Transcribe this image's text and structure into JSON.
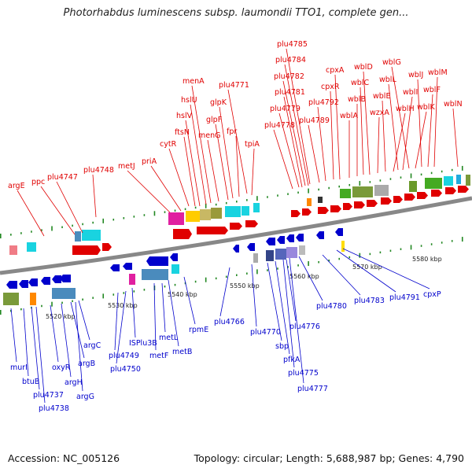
{
  "title": "Photorhabdus luminescens subsp. laumondii TTO1, complete gen...",
  "footer": {
    "accession": "Accession: NC_005126",
    "summary": "Topology: circular; Length: 5,688,987 bp; Genes: 4,790"
  },
  "colors": {
    "forward": "#e00000",
    "reverse": "#0000cc",
    "backbone": "#888888",
    "tick": "#228822"
  },
  "ticks": [
    "5520 kbp",
    "5530 kbp",
    "5540 kbp",
    "5550 kbp",
    "5560 kbp",
    "5570 kbp",
    "5580 kbp"
  ],
  "forward_labels": [
    "argE",
    "ppc",
    "plu4747",
    "plu4748",
    "metJ",
    "priA",
    "cytR",
    "ftsN",
    "hslV",
    "hslU",
    "menA",
    "menG",
    "glpF",
    "glpK",
    "fpr",
    "plu4771",
    "tpiA",
    "plu4778",
    "plu4779",
    "plu4781",
    "plu4782",
    "plu4784",
    "plu4785",
    "plu4789",
    "plu4792",
    "cpxR",
    "cpxA",
    "wblA",
    "wblB",
    "wblC",
    "wblD",
    "wzxA",
    "wblE",
    "wblH",
    "wblL",
    "wblI",
    "wblG",
    "wblK",
    "wblJ",
    "wblF",
    "wblM",
    "wblN"
  ],
  "reverse_labels": [
    "murI",
    "btuB",
    "plu4737",
    "plu4738",
    "oxyR",
    "argH",
    "argB",
    "argG",
    "argC",
    "plu4749",
    "plu4750",
    "ISPlu3B",
    "metF",
    "metL",
    "metB",
    "rpmE",
    "plu4766",
    "plu4770",
    "sbp",
    "pfkA",
    "plu4775",
    "plu4776",
    "plu4777",
    "plu4780",
    "plu4783",
    "plu4791",
    "cpxP"
  ]
}
